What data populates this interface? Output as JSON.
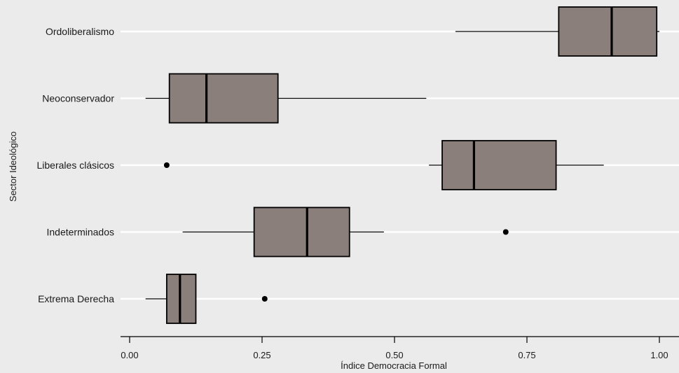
{
  "chart_data": {
    "type": "boxplot",
    "orientation": "horizontal",
    "xlabel": "Índice Democracia Formal",
    "ylabel": "Sector Ideológico",
    "xlim": [
      -0.02,
      1.03
    ],
    "xticks": [
      {
        "value": 0.0,
        "label": "0.00"
      },
      {
        "value": 0.25,
        "label": "0.25"
      },
      {
        "value": 0.5,
        "label": "0.50"
      },
      {
        "value": 0.75,
        "label": "0.75"
      },
      {
        "value": 1.0,
        "label": "1.00"
      }
    ],
    "categories": [
      "Ordoliberalismo",
      "Neoconservador",
      "Liberales clásicos",
      "Indeterminados",
      "Extrema Derecha"
    ],
    "boxes": [
      {
        "category": "Ordoliberalismo",
        "whisker_low": 0.615,
        "q1": 0.81,
        "median": 0.91,
        "q3": 0.995,
        "whisker_high": 1.0,
        "outliers": []
      },
      {
        "category": "Neoconservador",
        "whisker_low": 0.03,
        "q1": 0.075,
        "median": 0.145,
        "q3": 0.28,
        "whisker_high": 0.56,
        "outliers": []
      },
      {
        "category": "Liberales clásicos",
        "whisker_low": 0.565,
        "q1": 0.59,
        "median": 0.65,
        "q3": 0.805,
        "whisker_high": 0.895,
        "outliers": [
          0.07
        ]
      },
      {
        "category": "Indeterminados",
        "whisker_low": 0.1,
        "q1": 0.235,
        "median": 0.335,
        "q3": 0.415,
        "whisker_high": 0.48,
        "outliers": [
          0.71
        ]
      },
      {
        "category": "Extrema Derecha",
        "whisker_low": 0.03,
        "q1": 0.07,
        "median": 0.095,
        "q3": 0.125,
        "whisker_high": 0.125,
        "outliers": [
          0.255
        ]
      }
    ],
    "colors": {
      "background": "#ebebeb",
      "box_fill": "#8a7f7b",
      "box_stroke": "#000000",
      "gridline": "#ffffff",
      "point": "#000000"
    },
    "grid": true,
    "legend": "none"
  }
}
